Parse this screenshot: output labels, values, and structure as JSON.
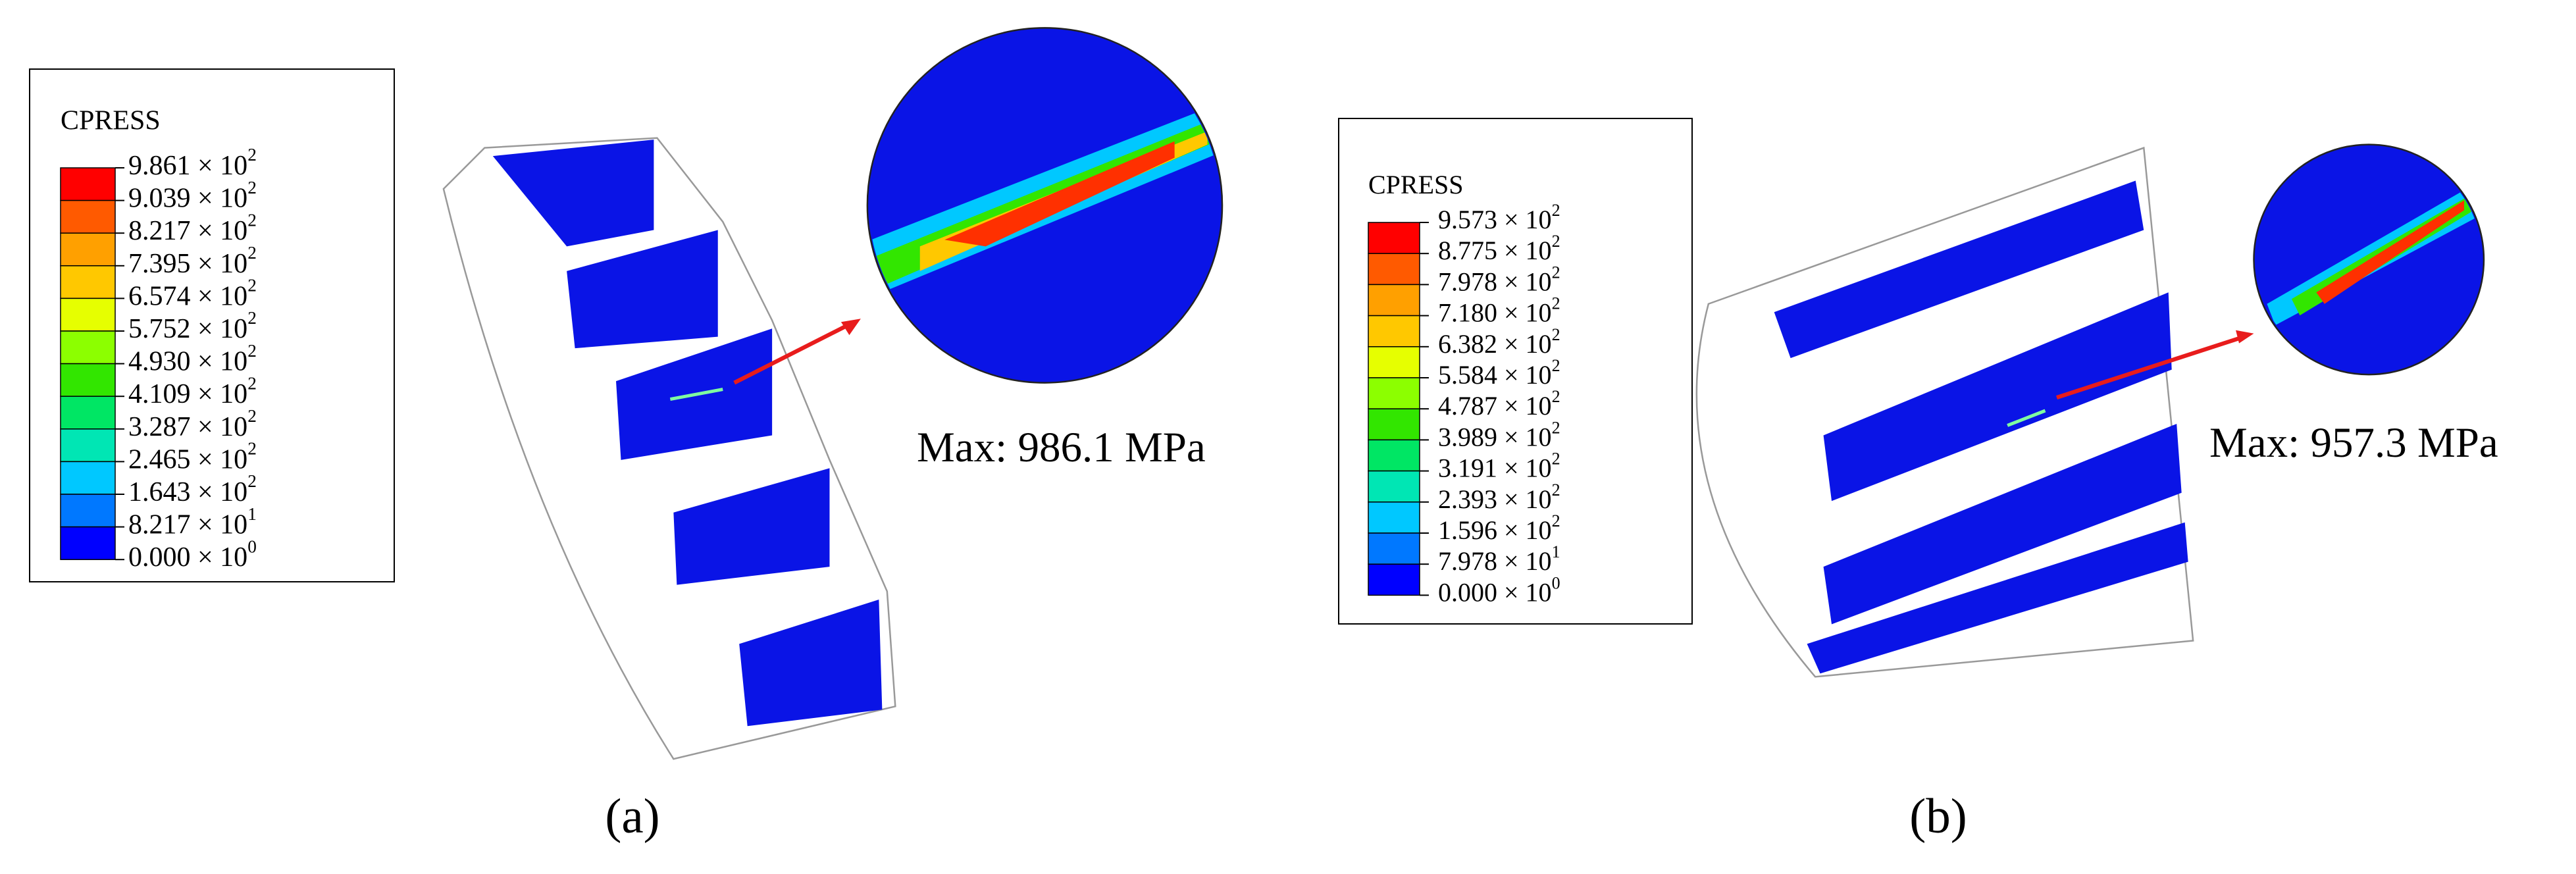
{
  "panels": [
    {
      "legend": {
        "title": "CPRESS",
        "levels": [
          {
            "base": "9.861 × 10",
            "exp": "2"
          },
          {
            "base": "9.039 × 10",
            "exp": "2"
          },
          {
            "base": "8.217 × 10",
            "exp": "2"
          },
          {
            "base": "7.395 × 10",
            "exp": "2"
          },
          {
            "base": "6.574 × 10",
            "exp": "2"
          },
          {
            "base": "5.752 × 10",
            "exp": "2"
          },
          {
            "base": "4.930 × 10",
            "exp": "2"
          },
          {
            "base": "4.109 × 10",
            "exp": "2"
          },
          {
            "base": "3.287 × 10",
            "exp": "2"
          },
          {
            "base": "2.465 × 10",
            "exp": "2"
          },
          {
            "base": "1.643 × 10",
            "exp": "2"
          },
          {
            "base": "8.217 × 10",
            "exp": "1"
          },
          {
            "base": "0.000 × 10",
            "exp": "0"
          }
        ],
        "colors": [
          "#ff0000",
          "#ff5a00",
          "#ffa000",
          "#ffc800",
          "#e6ff00",
          "#8cff00",
          "#32e600",
          "#00e664",
          "#00e6b4",
          "#00c8ff",
          "#0078ff",
          "#0000ff"
        ]
      },
      "max_label": "Max: 986.1 MPa",
      "caption": "(a)"
    },
    {
      "legend": {
        "title": "CPRESS",
        "levels": [
          {
            "base": "9.573 × 10",
            "exp": "2"
          },
          {
            "base": "8.775 × 10",
            "exp": "2"
          },
          {
            "base": "7.978 × 10",
            "exp": "2"
          },
          {
            "base": "7.180 × 10",
            "exp": "2"
          },
          {
            "base": "6.382 × 10",
            "exp": "2"
          },
          {
            "base": "5.584 × 10",
            "exp": "2"
          },
          {
            "base": "4.787 × 10",
            "exp": "2"
          },
          {
            "base": "3.989 × 10",
            "exp": "2"
          },
          {
            "base": "3.191 × 10",
            "exp": "2"
          },
          {
            "base": "2.393 × 10",
            "exp": "2"
          },
          {
            "base": "1.596 × 10",
            "exp": "2"
          },
          {
            "base": "7.978 × 10",
            "exp": "1"
          },
          {
            "base": "0.000 × 10",
            "exp": "0"
          }
        ],
        "colors": [
          "#ff0000",
          "#ff5a00",
          "#ffa000",
          "#ffc800",
          "#e6ff00",
          "#8cff00",
          "#32e600",
          "#00e664",
          "#00e6b4",
          "#00c8ff",
          "#0078ff",
          "#0000ff"
        ]
      },
      "max_label": "Max: 957.3 MPa",
      "caption": "(b)"
    }
  ]
}
